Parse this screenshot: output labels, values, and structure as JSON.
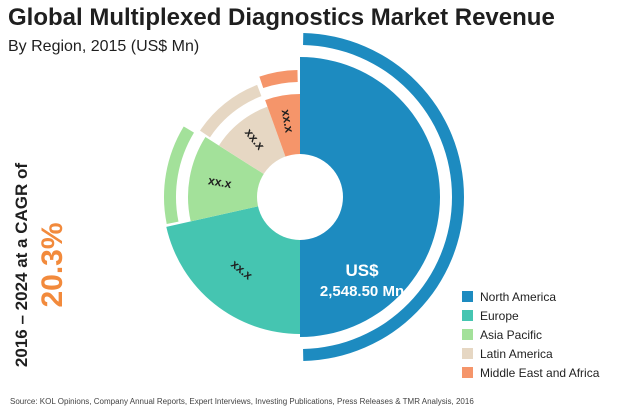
{
  "chart_data": {
    "type": "pie",
    "title": "Global Multiplexed Diagnostics Market Revenue",
    "subtitle": "By Region, 2015 (US$ Mn)",
    "categories": [
      "North America",
      "Europe",
      "Asia Pacific",
      "Latin America",
      "Middle East and Africa"
    ],
    "values": [
      50.0,
      21.5,
      12.5,
      10.5,
      5.5
    ],
    "slice_labels": [
      "",
      "xx.x",
      "xx.x",
      "xx.x",
      "xx.x"
    ],
    "center_label_line1": "US$",
    "center_label_line2": "2,548.50 Mn",
    "colors": [
      "#1d8bc0",
      "#45c5b1",
      "#a3e19a",
      "#e6d7c3",
      "#f5956a"
    ],
    "legend_position": "bottom-right",
    "cagr_label": "2016 – 2024 at a CAGR of",
    "cagr_value": "20.3%",
    "source": "Source: KOL Opinions, Company Annual Reports, Expert Interviews, Investing Publications, Press Releases & TMR Analysis, 2016"
  }
}
